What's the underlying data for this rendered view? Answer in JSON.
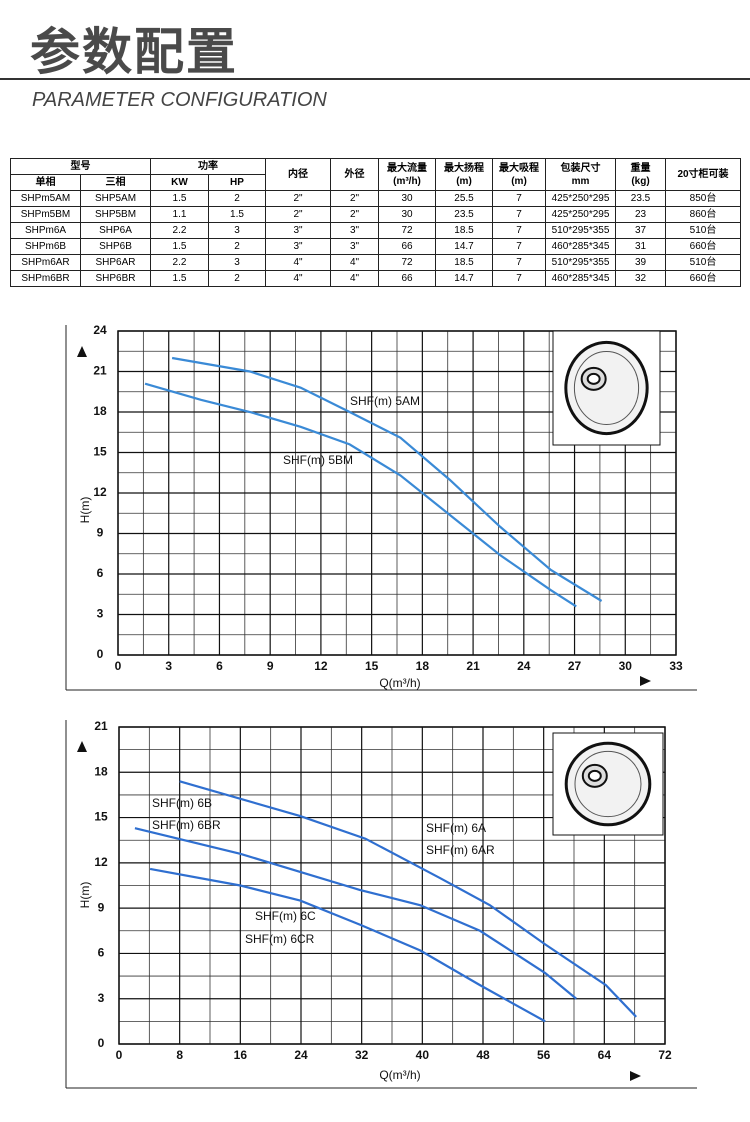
{
  "header": {
    "title": "参数配置",
    "subtitle": "PARAMETER CONFIGURATION"
  },
  "table": {
    "head": [
      [
        "型号",
        "功率",
        "内径",
        "外径",
        "最大流量",
        "最大扬程",
        "最大吸程",
        "包装尺寸",
        "重量",
        "20寸柜可装"
      ],
      [
        "单相",
        "三相",
        "KW",
        "HP",
        "(m³/h)",
        "(m)",
        "(m)",
        "mm",
        "(kg)"
      ]
    ],
    "rows": [
      [
        "SHPm5AM",
        "SHP5AM",
        "1.5",
        "2",
        "2\"",
        "2\"",
        "30",
        "25.5",
        "7",
        "425*250*295",
        "23.5",
        "850台"
      ],
      [
        "SHPm5BM",
        "SHP5BM",
        "1.1",
        "1.5",
        "2\"",
        "2\"",
        "30",
        "23.5",
        "7",
        "425*250*295",
        "23",
        "860台"
      ],
      [
        "SHPm6A",
        "SHP6A",
        "2.2",
        "3",
        "3\"",
        "3\"",
        "72",
        "18.5",
        "7",
        "510*295*355",
        "37",
        "510台"
      ],
      [
        "SHPm6B",
        "SHP6B",
        "1.5",
        "2",
        "3\"",
        "3\"",
        "66",
        "14.7",
        "7",
        "460*285*345",
        "31",
        "660台"
      ],
      [
        "SHPm6AR",
        "SHP6AR",
        "2.2",
        "3",
        "4\"",
        "4\"",
        "72",
        "18.5",
        "7",
        "510*295*355",
        "39",
        "510台"
      ],
      [
        "SHPm6BR",
        "SHP6BR",
        "1.5",
        "2",
        "4\"",
        "4\"",
        "66",
        "14.7",
        "7",
        "460*285*345",
        "32",
        "660台"
      ]
    ]
  },
  "chart_data": [
    {
      "type": "line",
      "x_label": "Q(m³/h)",
      "y_label": "H(m)",
      "xlim": [
        0,
        33
      ],
      "ylim": [
        0,
        24
      ],
      "xticks": [
        0,
        3,
        6,
        9,
        12,
        15,
        18,
        21,
        24,
        27,
        30,
        33
      ],
      "yticks": [
        0,
        3,
        6,
        9,
        12,
        15,
        18,
        21,
        24
      ],
      "grid": true,
      "series": [
        {
          "name": "SHF(m) 5AM",
          "color": "#3a8ad6",
          "x": [
            3.2,
            7.8,
            10.8,
            13.7,
            16.7,
            19.6,
            22.6,
            25.6,
            28.6
          ],
          "values": [
            22,
            21,
            19.8,
            18,
            16.1,
            13,
            9.5,
            6.3,
            4
          ]
        },
        {
          "name": "SHF(m) 5BM",
          "color": "#3a8ad6",
          "x": [
            1.6,
            4.9,
            7.8,
            10.8,
            13.7,
            16.7,
            19.6,
            22.6,
            25.6,
            27.1
          ],
          "values": [
            20.1,
            18.9,
            18,
            16.9,
            15.6,
            13.3,
            10.4,
            7.4,
            4.8,
            3.6
          ]
        }
      ]
    },
    {
      "type": "line",
      "x_label": "Q(m³/h)",
      "y_label": "H(m)",
      "xlim": [
        0,
        72
      ],
      "ylim": [
        0,
        21
      ],
      "xticks": [
        0,
        8,
        16,
        24,
        32,
        40,
        48,
        56,
        64,
        72
      ],
      "yticks": [
        0,
        3,
        6,
        9,
        12,
        15,
        18,
        21
      ],
      "grid": true,
      "series": [
        {
          "name": "SHF(m) 6A",
          "alt_name": "SHF(m) 6AR",
          "color": "#2f6fd0",
          "x": [
            8,
            23.9,
            32.5,
            42.3,
            48.9,
            56.2,
            64.2,
            68.2
          ],
          "values": [
            17.4,
            15.1,
            13.6,
            11,
            9.2,
            6.6,
            3.9,
            1.8
          ]
        },
        {
          "name": "SHF(m) 6B",
          "alt_name": "SHF(m) 6BR",
          "color": "#2f6fd0",
          "x": [
            2.1,
            16,
            23.9,
            31.8,
            39.7,
            47.6,
            56.2,
            60.3
          ],
          "values": [
            14.3,
            12.6,
            11.4,
            10.2,
            9.2,
            7.5,
            4.7,
            3
          ]
        },
        {
          "name": "SHF(m) 6C",
          "alt_name": "SHF(m) 6CR",
          "color": "#2f6fd0",
          "x": [
            4.1,
            16,
            23.9,
            31.8,
            39.7,
            47.6,
            56.2
          ],
          "values": [
            11.6,
            10.5,
            9.5,
            7.9,
            6.2,
            3.9,
            1.5
          ]
        }
      ]
    }
  ]
}
